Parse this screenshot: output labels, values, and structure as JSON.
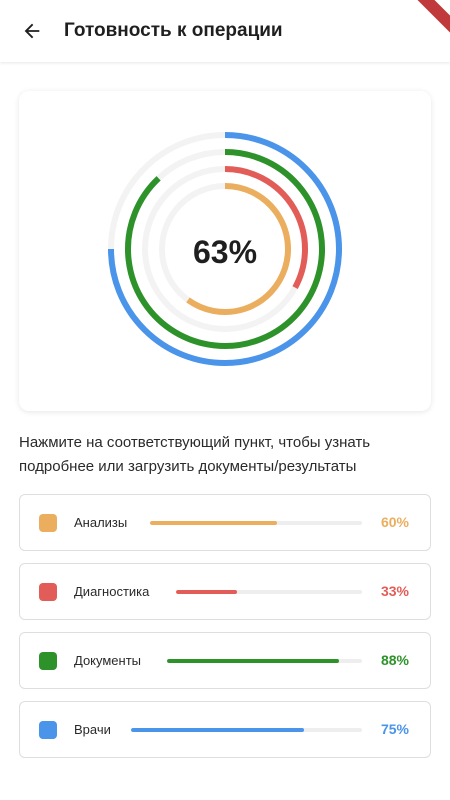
{
  "header": {
    "title": "Готовность к операции"
  },
  "chart_data": {
    "type": "radial-progress",
    "center_label": "63%",
    "series": [
      {
        "name": "Анализы",
        "value": 60,
        "color": "#EBAE5F"
      },
      {
        "name": "Диагностика",
        "value": 33,
        "color": "#E35D58"
      },
      {
        "name": "Документы",
        "value": 88,
        "color": "#2E922A"
      },
      {
        "name": "Врачи",
        "value": 75,
        "color": "#4A94EA"
      }
    ]
  },
  "description": "Нажмите на соответствующий пункт, чтобы узнать подробнее или загрузить документы/результаты",
  "items": [
    {
      "label": "Анализы",
      "percent_text": "60%",
      "value": 60,
      "color": "#EBAE5F"
    },
    {
      "label": "Диагностика",
      "percent_text": "33%",
      "value": 33,
      "color": "#E35D58"
    },
    {
      "label": "Документы",
      "percent_text": "88%",
      "value": 88,
      "color": "#2E922A"
    },
    {
      "label": "Врачи",
      "percent_text": "75%",
      "value": 75,
      "color": "#4A94EA"
    }
  ],
  "icons": {
    "back": "arrow-left-icon"
  }
}
